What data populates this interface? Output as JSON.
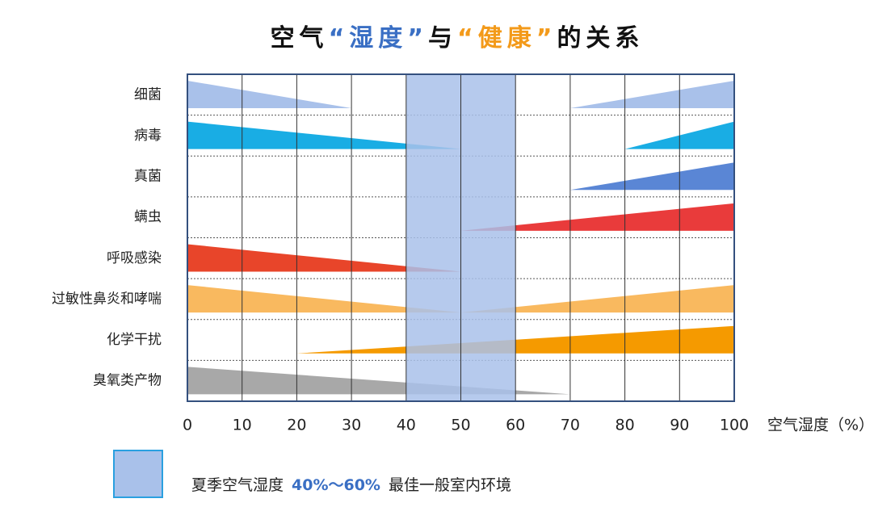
{
  "chart_data": {
    "type": "wedge",
    "title": [
      "空气",
      "“湿度”",
      "与",
      "“健康”",
      "的关系"
    ],
    "title_colors": [
      "#111111",
      "#3a6fc4",
      "#111111",
      "#f39a1a",
      "#111111"
    ],
    "series": [
      {
        "name": "细菌",
        "color": "#a9c1ea",
        "decline": [
          0,
          30
        ],
        "rise": [
          70,
          100
        ]
      },
      {
        "name": "病毒",
        "color": "#19ade4",
        "decline": [
          0,
          50
        ],
        "rise": [
          80,
          100
        ]
      },
      {
        "name": "真菌",
        "color": "#5a86d5",
        "decline": null,
        "rise": [
          70,
          100
        ]
      },
      {
        "name": "螨虫",
        "color": "#e93b3b",
        "decline": null,
        "rise": [
          50,
          100
        ]
      },
      {
        "name": "呼吸感染",
        "color": "#e8452a",
        "decline": [
          0,
          50
        ],
        "rise": null
      },
      {
        "name": "过敏性鼻炎和哮喘",
        "color": "#f9b95f",
        "decline": [
          0,
          50
        ],
        "rise": [
          50,
          100
        ]
      },
      {
        "name": "化学干扰",
        "color": "#f59a00",
        "decline": null,
        "rise": [
          20,
          100
        ]
      },
      {
        "name": "臭氧类产物",
        "color": "#a8a8a8",
        "decline": [
          0,
          70
        ],
        "rise": null
      }
    ],
    "xlim": [
      0,
      100
    ],
    "xticks": [
      0,
      10,
      20,
      30,
      40,
      50,
      60,
      70,
      80,
      90,
      100
    ],
    "xlabel": "空气湿度（%）",
    "highlight": [
      40,
      60
    ],
    "highlight_color": "#a9c1ea",
    "legend": [
      "夏季空气湿度",
      "40%～60%",
      "最佳一般室内环境"
    ]
  }
}
